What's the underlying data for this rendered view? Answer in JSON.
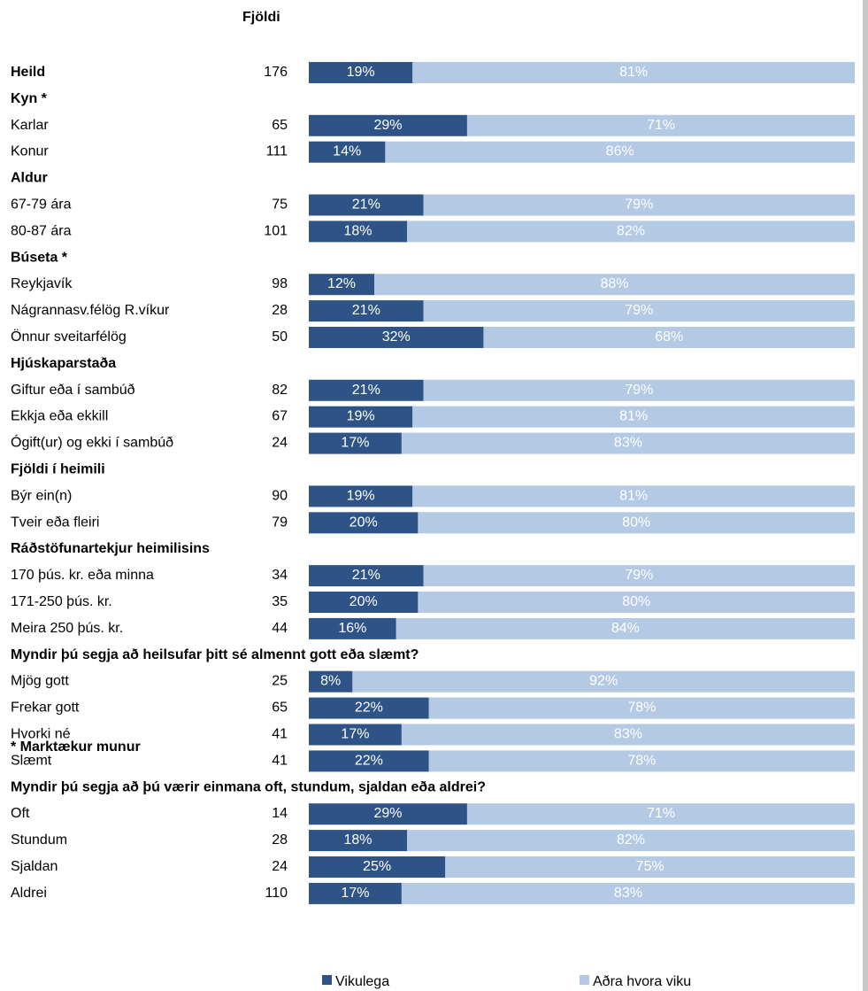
{
  "colors": {
    "weekly": "#2e5487",
    "other": "#b3c9e4",
    "weekly_text": "#ffffff",
    "other_text": "#ffffff"
  },
  "chart_data": {
    "type": "bar",
    "stacked": true,
    "orientation": "horizontal",
    "count_header": "Fjöldi",
    "footnote": "* Marktækur munur",
    "xlim": [
      0,
      100
    ],
    "grid": false,
    "legend_position": "bottom",
    "series": [
      {
        "name": "Vikulega",
        "color": "#2e5487"
      },
      {
        "name": "Aðra hvora viku",
        "color": "#b3c9e4"
      }
    ],
    "rows": [
      {
        "label": "Heild",
        "bold": true,
        "n": "176",
        "weekly": 19,
        "other": 81
      },
      {
        "label": "Kyn *",
        "header": true
      },
      {
        "label": "Karlar",
        "n": "65",
        "weekly": 29,
        "other": 71
      },
      {
        "label": "Konur",
        "n": "111",
        "weekly": 14,
        "other": 86
      },
      {
        "label": "Aldur",
        "header": true
      },
      {
        "label": "67-79 ára",
        "n": "75",
        "weekly": 21,
        "other": 79
      },
      {
        "label": "80-87 ára",
        "n": "101",
        "weekly": 18,
        "other": 82
      },
      {
        "label": "Búseta *",
        "header": true
      },
      {
        "label": "Reykjavík",
        "n": "98",
        "weekly": 12,
        "other": 88
      },
      {
        "label": "Nágrannasv.félög R.víkur",
        "n": "28",
        "weekly": 21,
        "other": 79
      },
      {
        "label": "Önnur sveitarfélög",
        "n": "50",
        "weekly": 32,
        "other": 68
      },
      {
        "label": "Hjúskaparstaða",
        "header": true
      },
      {
        "label": "Giftur eða í sambúð",
        "n": "82",
        "weekly": 21,
        "other": 79
      },
      {
        "label": "Ekkja eða ekkill",
        "n": "67",
        "weekly": 19,
        "other": 81
      },
      {
        "label": "Ógift(ur) og ekki í sambúð",
        "n": "24",
        "weekly": 17,
        "other": 83
      },
      {
        "label": "Fjöldi í heimili",
        "header": true
      },
      {
        "label": "Býr ein(n)",
        "n": "90",
        "weekly": 19,
        "other": 81
      },
      {
        "label": "Tveir eða fleiri",
        "n": "79",
        "weekly": 20,
        "other": 80
      },
      {
        "label": "Ráðstöfunartekjur heimilisins",
        "header": true
      },
      {
        "label": "170 þús. kr. eða minna",
        "n": "34",
        "weekly": 21,
        "other": 79
      },
      {
        "label": "171-250 þús. kr.",
        "n": "35",
        "weekly": 20,
        "other": 80
      },
      {
        "label": "Meira 250 þús. kr.",
        "n": "44",
        "weekly": 16,
        "other": 84
      },
      {
        "label": "Myndir þú segja að heilsufar þitt sé almennt gott eða slæmt?",
        "header": true
      },
      {
        "label": "Mjög gott",
        "n": "25",
        "weekly": 8,
        "other": 92
      },
      {
        "label": "Frekar gott",
        "n": "65",
        "weekly": 22,
        "other": 78
      },
      {
        "label": "Hvorki né",
        "n": "41",
        "weekly": 17,
        "other": 83
      },
      {
        "label": "Slæmt",
        "n": "41",
        "weekly": 22,
        "other": 78
      },
      {
        "label": "Myndir þú segja að þú værir einmana oft, stundum, sjaldan eða aldrei?",
        "header": true
      },
      {
        "label": "Oft",
        "n": "14",
        "weekly": 29,
        "other": 71
      },
      {
        "label": "Stundum",
        "n": "28",
        "weekly": 18,
        "other": 82
      },
      {
        "label": "Sjaldan",
        "n": "24",
        "weekly": 25,
        "other": 75
      },
      {
        "label": "Aldrei",
        "n": "110",
        "weekly": 17,
        "other": 83
      }
    ]
  }
}
